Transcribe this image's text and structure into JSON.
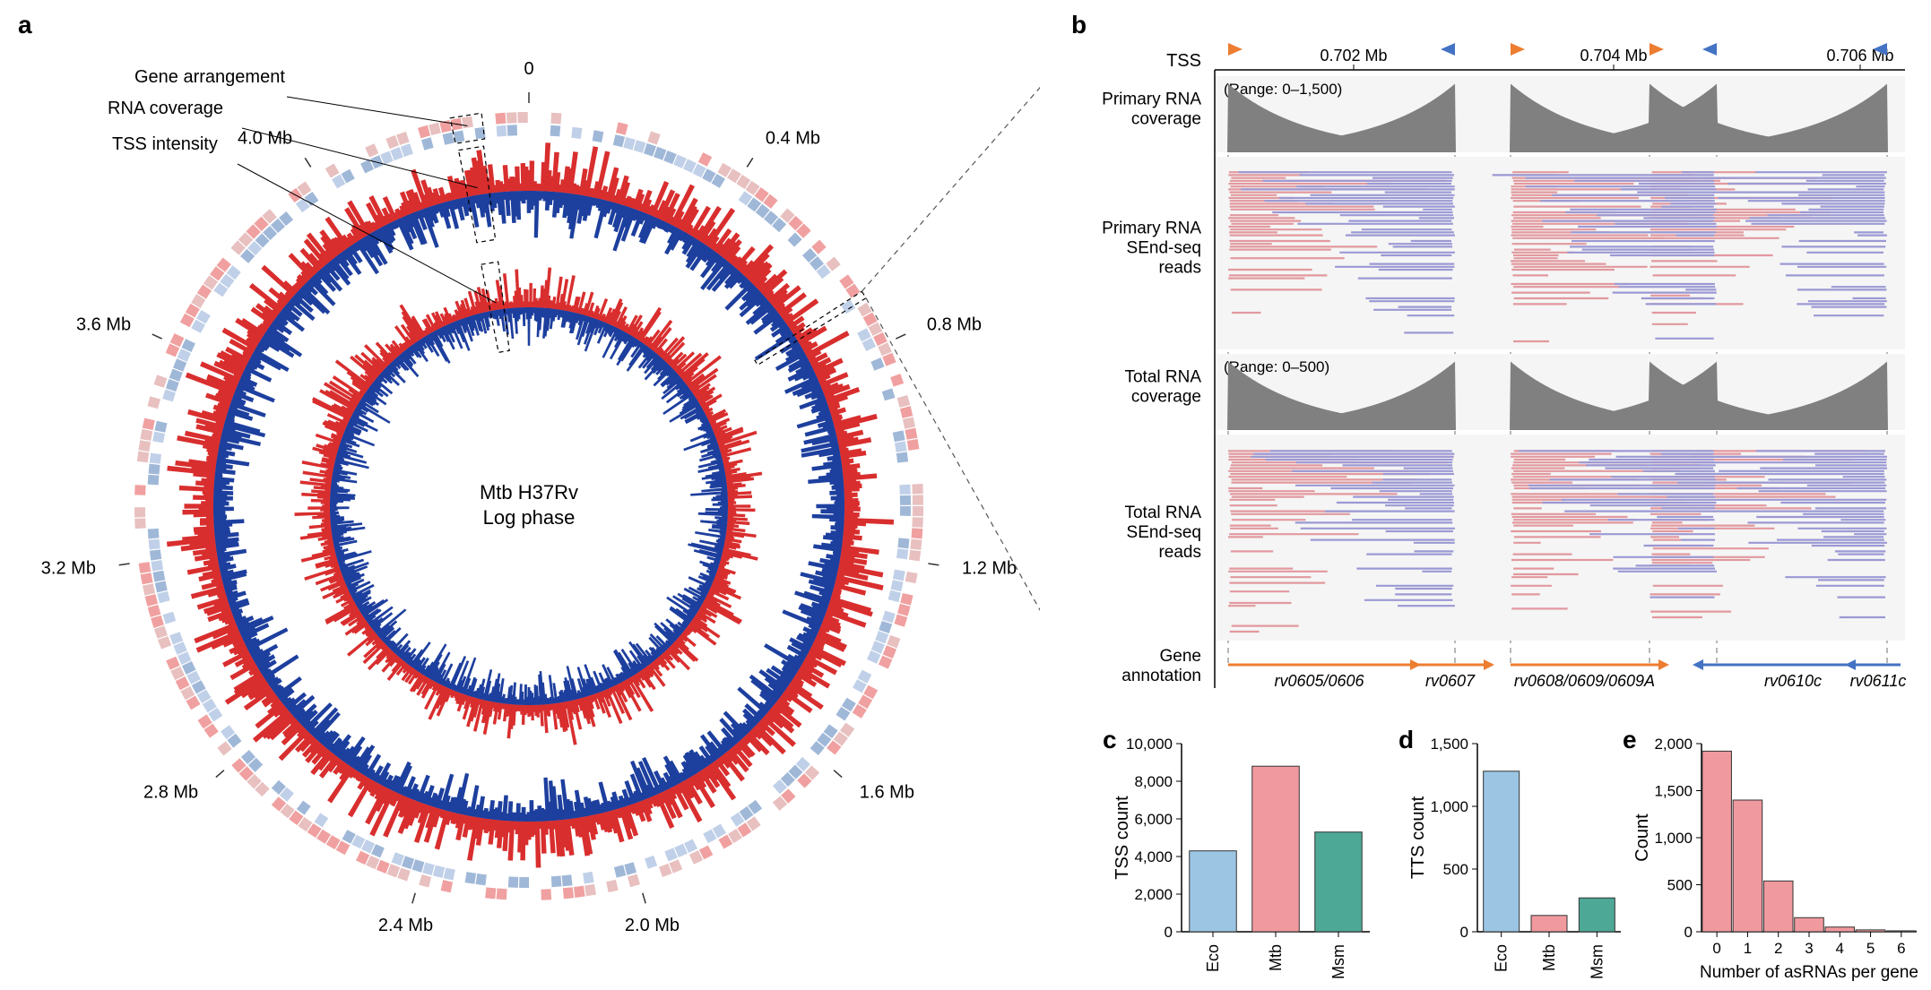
{
  "panel_a": {
    "label": "a",
    "center_text_1": "Mtb H37Rv",
    "center_text_2": "Log phase",
    "callouts": {
      "gene_arrangement": "Gene arrangement",
      "rna_coverage": "RNA coverage",
      "tss_intensity": "TSS intensity"
    },
    "genome_ticks": [
      "0",
      "0.4 Mb",
      "0.8 Mb",
      "1.2 Mb",
      "1.6 Mb",
      "2.0 Mb",
      "2.4 Mb",
      "2.8 Mb",
      "3.2 Mb",
      "3.6 Mb",
      "4.0 Mb"
    ],
    "colors": {
      "red": "#d92e2e",
      "blue": "#1d3f9e",
      "light_red": "#f0a0a0",
      "light_blue": "#a0b8d8",
      "tick": "#333333"
    },
    "outer_radius": 410,
    "inner_radius": 150
  },
  "panel_b": {
    "label": "b",
    "tss_label": "TSS",
    "row_labels": {
      "primary_cov": "Primary RNA\ncoverage",
      "primary_reads": "Primary RNA\nSEnd-seq\nreads",
      "total_cov": "Total RNA\ncoverage",
      "total_reads": "Total RNA\nSEnd-seq\nreads",
      "anno": "Gene\nannotation"
    },
    "range_primary": "(Range: 0–1,500)",
    "range_total": "(Range: 0–500)",
    "x_ticks": [
      "0.702 Mb",
      "0.704 Mb",
      "0.706 Mb"
    ],
    "genes": [
      "rv0605/0606",
      "rv0607",
      "rv0608/0609/0609A",
      "rv0610c",
      "rv0611c"
    ],
    "colors": {
      "orange": "#ed7d31",
      "blue": "#4472c4",
      "grey_fill": "#808080",
      "pink": "#e2999e",
      "purple": "#9b99d4",
      "bg": "#f5f5f5",
      "dash": "#888888"
    }
  },
  "panel_c": {
    "label": "c",
    "ylabel": "TSS count",
    "categories": [
      "Eco",
      "Mtb",
      "Msm"
    ],
    "values": [
      4300,
      8800,
      5300
    ],
    "colors": [
      "#9cc5e3",
      "#f0999e",
      "#4ea896"
    ],
    "ylim": [
      0,
      10000
    ],
    "ytick_step": 2000,
    "yticks_labels": [
      "0",
      "2,000",
      "4,000",
      "6,000",
      "8,000",
      "10,000"
    ],
    "bar_border": "#333333",
    "axis_color": "#000000"
  },
  "panel_d": {
    "label": "d",
    "ylabel": "TTS count",
    "categories": [
      "Eco",
      "Mtb",
      "Msm"
    ],
    "values": [
      1280,
      130,
      270
    ],
    "colors": [
      "#9cc5e3",
      "#f0999e",
      "#4ea896"
    ],
    "ylim": [
      0,
      1500
    ],
    "ytick_step": 500,
    "yticks_labels": [
      "0",
      "500",
      "1,000",
      "1,500"
    ],
    "bar_border": "#333333",
    "axis_color": "#000000"
  },
  "panel_e": {
    "label": "e",
    "ylabel": "Count",
    "xlabel": "Number of asRNAs per gene",
    "categories": [
      "0",
      "1",
      "2",
      "3",
      "4",
      "5",
      "6"
    ],
    "values": [
      1920,
      1400,
      540,
      150,
      50,
      20,
      10
    ],
    "bar_color": "#f0999e",
    "ylim": [
      0,
      2000
    ],
    "ytick_step": 500,
    "yticks_labels": [
      "0",
      "500",
      "1,000",
      "1,500",
      "2,000"
    ],
    "bar_border": "#333333",
    "axis_color": "#000000"
  }
}
